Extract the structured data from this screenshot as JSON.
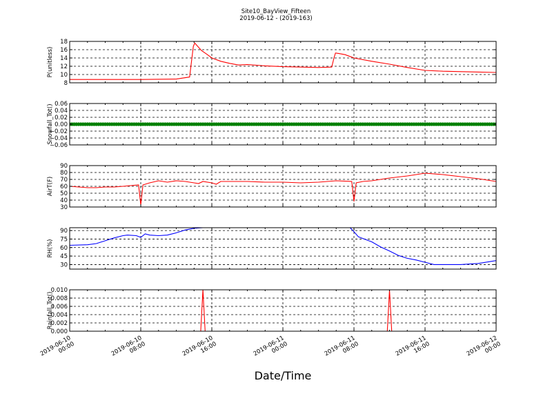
{
  "title": "Site10_BayView_Fifteen",
  "subtitle": "2019-06-12 - (2019-163)",
  "xlabel": "Date/Time",
  "x_ticks": [
    {
      "label_date": "2019-06-10",
      "label_time": "00:00",
      "hour": 0
    },
    {
      "label_date": "2019-06-10",
      "label_time": "08:00",
      "hour": 8
    },
    {
      "label_date": "2019-06-10",
      "label_time": "16:00",
      "hour": 16
    },
    {
      "label_date": "2019-06-11",
      "label_time": "00:00",
      "hour": 24
    },
    {
      "label_date": "2019-06-11",
      "label_time": "08:00",
      "hour": 32
    },
    {
      "label_date": "2019-06-11",
      "label_time": "16:00",
      "hour": 40
    },
    {
      "label_date": "2019-06-12",
      "label_time": "00:00",
      "hour": 48
    }
  ],
  "chart_data": [
    {
      "type": "line",
      "ylabel": "P(unitless)",
      "ylim": [
        8,
        18
      ],
      "yticks": [
        "8",
        "10",
        "12",
        "14",
        "16",
        "18"
      ],
      "color": "#ff0000",
      "grid": true,
      "x": [
        "2019-06-10 00:00",
        "2019-06-10 04:00",
        "2019-06-10 08:00",
        "2019-06-10 12:00",
        "2019-06-10 13:30",
        "2019-06-10 13:55",
        "2019-06-10 14:05",
        "2019-06-10 14:25",
        "2019-06-10 14:50",
        "2019-06-10 15:30",
        "2019-06-10 16:00",
        "2019-06-10 17:00",
        "2019-06-10 18:00",
        "2019-06-10 19:00",
        "2019-06-10 20:00",
        "2019-06-10 22:00",
        "2019-06-11 00:00",
        "2019-06-11 02:00",
        "2019-06-11 04:00",
        "2019-06-11 05:30",
        "2019-06-11 05:45",
        "2019-06-11 05:55",
        "2019-06-11 06:15",
        "2019-06-11 07:00",
        "2019-06-11 08:00",
        "2019-06-11 10:00",
        "2019-06-11 12:00",
        "2019-06-11 14:00",
        "2019-06-11 16:00",
        "2019-06-11 18:00",
        "2019-06-11 20:00",
        "2019-06-11 22:00",
        "2019-06-12 00:00"
      ],
      "values": [
        8.8,
        8.8,
        8.8,
        8.9,
        9.4,
        16.8,
        17.6,
        16.8,
        15.8,
        14.8,
        14.0,
        13.2,
        12.7,
        12.3,
        12.4,
        12.1,
        11.9,
        11.8,
        11.7,
        11.8,
        14.0,
        15.2,
        15.1,
        14.8,
        14.0,
        13.2,
        12.5,
        11.7,
        11.0,
        10.8,
        10.7,
        10.6,
        10.5
      ]
    },
    {
      "type": "scatter",
      "ylabel": "Snowfall_Tot()",
      "ylim": [
        -0.06,
        0.06
      ],
      "yticks": [
        "−0.06",
        "−0.04",
        "−0.02",
        "0.00",
        "0.02",
        "0.04",
        "0.06"
      ],
      "color": "#008000",
      "grid": true,
      "x_start": "2019-06-10 00:00",
      "x_end": "2019-06-12 00:00",
      "x_step": "15 min",
      "constant_value": 0
    },
    {
      "type": "line",
      "ylabel": "AirT(F)",
      "ylim": [
        30,
        90
      ],
      "yticks": [
        "30",
        "40",
        "50",
        "60",
        "70",
        "80",
        "90"
      ],
      "color": "#ff0000",
      "grid": true,
      "x": [
        "2019-06-10 00:00",
        "2019-06-10 01:00",
        "2019-06-10 02:00",
        "2019-06-10 03:00",
        "2019-06-10 04:00",
        "2019-06-10 05:00",
        "2019-06-10 06:00",
        "2019-06-10 07:45",
        "2019-06-10 08:00",
        "2019-06-10 08:15",
        "2019-06-10 09:00",
        "2019-06-10 10:00",
        "2019-06-10 11:00",
        "2019-06-10 12:00",
        "2019-06-10 13:00",
        "2019-06-10 14:00",
        "2019-06-10 14:30",
        "2019-06-10 15:00",
        "2019-06-10 16:00",
        "2019-06-10 16:30",
        "2019-06-10 17:00",
        "2019-06-10 18:00",
        "2019-06-10 20:00",
        "2019-06-10 22:00",
        "2019-06-11 00:00",
        "2019-06-11 02:00",
        "2019-06-11 04:00",
        "2019-06-11 06:00",
        "2019-06-11 07:45",
        "2019-06-11 08:00",
        "2019-06-11 08:15",
        "2019-06-11 09:00",
        "2019-06-11 10:00",
        "2019-06-11 12:00",
        "2019-06-11 14:00",
        "2019-06-11 16:00",
        "2019-06-11 18:00",
        "2019-06-11 20:00",
        "2019-06-11 22:00",
        "2019-06-12 00:00"
      ],
      "values": [
        60,
        59,
        58,
        58,
        59,
        59,
        60,
        62,
        33,
        62,
        65,
        68,
        66,
        68,
        67,
        65,
        64,
        67,
        65,
        63,
        67,
        67,
        67,
        66,
        66,
        65,
        66,
        68,
        67,
        38,
        65,
        67,
        68,
        72,
        75,
        79,
        77,
        74,
        71,
        67
      ]
    },
    {
      "type": "line",
      "ylabel": "RH(%)",
      "ylim": [
        22,
        95
      ],
      "yticks": [
        "30",
        "45",
        "60",
        "75",
        "90"
      ],
      "color": "#0000ff",
      "grid": true,
      "segments": [
        {
          "x": [
            "2019-06-10 00:00",
            "2019-06-10 02:00",
            "2019-06-10 03:00",
            "2019-06-10 04:00",
            "2019-06-10 05:00",
            "2019-06-10 06:00",
            "2019-06-10 06:30",
            "2019-06-10 07:30",
            "2019-06-10 08:00",
            "2019-06-10 08:30",
            "2019-06-10 09:00",
            "2019-06-10 10:00",
            "2019-06-10 11:00",
            "2019-06-10 12:00",
            "2019-06-10 13:00",
            "2019-06-10 14:00",
            "2019-06-10 15:00",
            "2019-06-10 16:00",
            "2019-06-10 17:00"
          ],
          "values": [
            64,
            65,
            67,
            72,
            77,
            81,
            82,
            81,
            78,
            84,
            82,
            81,
            82,
            86,
            91,
            94,
            95,
            95,
            96
          ]
        },
        {
          "x": [
            "2019-06-11 07:30",
            "2019-06-11 08:00",
            "2019-06-11 08:30",
            "2019-06-11 09:00",
            "2019-06-11 10:00",
            "2019-06-11 11:00",
            "2019-06-11 12:00",
            "2019-06-11 13:00",
            "2019-06-11 14:00",
            "2019-06-11 15:00",
            "2019-06-11 16:00",
            "2019-06-11 17:00",
            "2019-06-11 18:00",
            "2019-06-11 20:00",
            "2019-06-11 22:00",
            "2019-06-12 00:00"
          ],
          "values": [
            96,
            88,
            79,
            76,
            70,
            61,
            54,
            46,
            41,
            38,
            34,
            30,
            30,
            30,
            32,
            37
          ]
        }
      ]
    },
    {
      "type": "line",
      "ylabel": "Rainfall_Tot()",
      "ylim": [
        0,
        0.01
      ],
      "yticks": [
        "0.000",
        "0.002",
        "0.004",
        "0.006",
        "0.008",
        "0.010"
      ],
      "color": "#ff0000",
      "grid": true,
      "x": [
        "2019-06-10 00:00",
        "2019-06-10 14:45",
        "2019-06-10 15:00",
        "2019-06-10 15:15",
        "2019-06-11 11:45",
        "2019-06-11 12:00",
        "2019-06-11 12:15",
        "2019-06-12 00:00"
      ],
      "values": [
        0,
        0,
        0.01,
        0,
        0,
        0.01,
        0,
        0
      ]
    }
  ]
}
